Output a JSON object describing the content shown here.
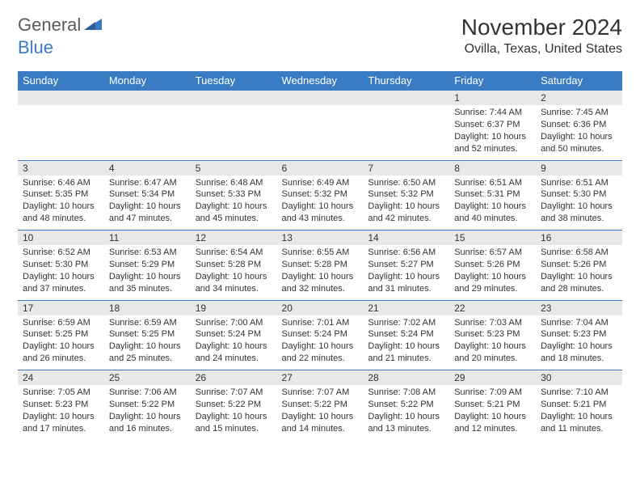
{
  "logo": {
    "part1": "General",
    "part2": "Blue"
  },
  "title": "November 2024",
  "location": "Ovilla, Texas, United States",
  "colors": {
    "header_bg": "#3a7cc4",
    "header_text": "#ffffff",
    "daynum_bg": "#e8e8e8",
    "border": "#3a7cc4",
    "text": "#333333",
    "logo_gray": "#5a5a5a",
    "logo_blue": "#3a7cc4"
  },
  "typography": {
    "title_size": 28,
    "location_size": 16,
    "weekday_size": 13,
    "daynum_size": 12,
    "body_size": 11
  },
  "weekdays": [
    "Sunday",
    "Monday",
    "Tuesday",
    "Wednesday",
    "Thursday",
    "Friday",
    "Saturday"
  ],
  "weeks": [
    [
      null,
      null,
      null,
      null,
      null,
      {
        "n": "1",
        "sunrise": "7:44 AM",
        "sunset": "6:37 PM",
        "daylight": "10 hours and 52 minutes."
      },
      {
        "n": "2",
        "sunrise": "7:45 AM",
        "sunset": "6:36 PM",
        "daylight": "10 hours and 50 minutes."
      }
    ],
    [
      {
        "n": "3",
        "sunrise": "6:46 AM",
        "sunset": "5:35 PM",
        "daylight": "10 hours and 48 minutes."
      },
      {
        "n": "4",
        "sunrise": "6:47 AM",
        "sunset": "5:34 PM",
        "daylight": "10 hours and 47 minutes."
      },
      {
        "n": "5",
        "sunrise": "6:48 AM",
        "sunset": "5:33 PM",
        "daylight": "10 hours and 45 minutes."
      },
      {
        "n": "6",
        "sunrise": "6:49 AM",
        "sunset": "5:32 PM",
        "daylight": "10 hours and 43 minutes."
      },
      {
        "n": "7",
        "sunrise": "6:50 AM",
        "sunset": "5:32 PM",
        "daylight": "10 hours and 42 minutes."
      },
      {
        "n": "8",
        "sunrise": "6:51 AM",
        "sunset": "5:31 PM",
        "daylight": "10 hours and 40 minutes."
      },
      {
        "n": "9",
        "sunrise": "6:51 AM",
        "sunset": "5:30 PM",
        "daylight": "10 hours and 38 minutes."
      }
    ],
    [
      {
        "n": "10",
        "sunrise": "6:52 AM",
        "sunset": "5:30 PM",
        "daylight": "10 hours and 37 minutes."
      },
      {
        "n": "11",
        "sunrise": "6:53 AM",
        "sunset": "5:29 PM",
        "daylight": "10 hours and 35 minutes."
      },
      {
        "n": "12",
        "sunrise": "6:54 AM",
        "sunset": "5:28 PM",
        "daylight": "10 hours and 34 minutes."
      },
      {
        "n": "13",
        "sunrise": "6:55 AM",
        "sunset": "5:28 PM",
        "daylight": "10 hours and 32 minutes."
      },
      {
        "n": "14",
        "sunrise": "6:56 AM",
        "sunset": "5:27 PM",
        "daylight": "10 hours and 31 minutes."
      },
      {
        "n": "15",
        "sunrise": "6:57 AM",
        "sunset": "5:26 PM",
        "daylight": "10 hours and 29 minutes."
      },
      {
        "n": "16",
        "sunrise": "6:58 AM",
        "sunset": "5:26 PM",
        "daylight": "10 hours and 28 minutes."
      }
    ],
    [
      {
        "n": "17",
        "sunrise": "6:59 AM",
        "sunset": "5:25 PM",
        "daylight": "10 hours and 26 minutes."
      },
      {
        "n": "18",
        "sunrise": "6:59 AM",
        "sunset": "5:25 PM",
        "daylight": "10 hours and 25 minutes."
      },
      {
        "n": "19",
        "sunrise": "7:00 AM",
        "sunset": "5:24 PM",
        "daylight": "10 hours and 24 minutes."
      },
      {
        "n": "20",
        "sunrise": "7:01 AM",
        "sunset": "5:24 PM",
        "daylight": "10 hours and 22 minutes."
      },
      {
        "n": "21",
        "sunrise": "7:02 AM",
        "sunset": "5:24 PM",
        "daylight": "10 hours and 21 minutes."
      },
      {
        "n": "22",
        "sunrise": "7:03 AM",
        "sunset": "5:23 PM",
        "daylight": "10 hours and 20 minutes."
      },
      {
        "n": "23",
        "sunrise": "7:04 AM",
        "sunset": "5:23 PM",
        "daylight": "10 hours and 18 minutes."
      }
    ],
    [
      {
        "n": "24",
        "sunrise": "7:05 AM",
        "sunset": "5:23 PM",
        "daylight": "10 hours and 17 minutes."
      },
      {
        "n": "25",
        "sunrise": "7:06 AM",
        "sunset": "5:22 PM",
        "daylight": "10 hours and 16 minutes."
      },
      {
        "n": "26",
        "sunrise": "7:07 AM",
        "sunset": "5:22 PM",
        "daylight": "10 hours and 15 minutes."
      },
      {
        "n": "27",
        "sunrise": "7:07 AM",
        "sunset": "5:22 PM",
        "daylight": "10 hours and 14 minutes."
      },
      {
        "n": "28",
        "sunrise": "7:08 AM",
        "sunset": "5:22 PM",
        "daylight": "10 hours and 13 minutes."
      },
      {
        "n": "29",
        "sunrise": "7:09 AM",
        "sunset": "5:21 PM",
        "daylight": "10 hours and 12 minutes."
      },
      {
        "n": "30",
        "sunrise": "7:10 AM",
        "sunset": "5:21 PM",
        "daylight": "10 hours and 11 minutes."
      }
    ]
  ]
}
